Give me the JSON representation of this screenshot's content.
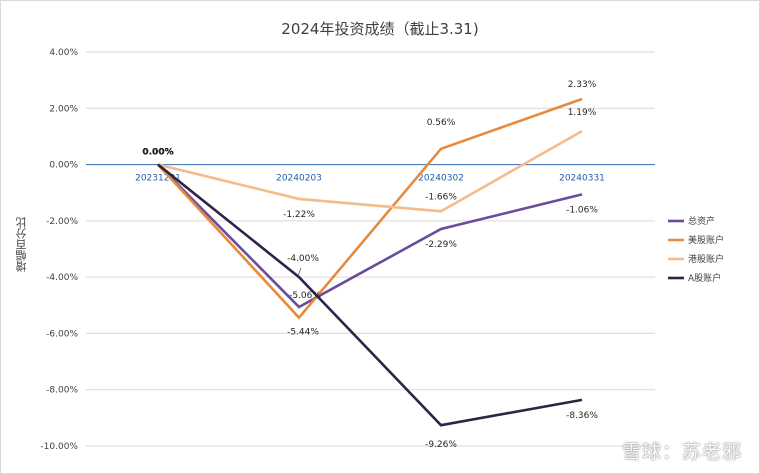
{
  "chart_data": {
    "type": "line",
    "title": "2024年投资成绩（截止3.31)",
    "ylabel": "增幅百分比",
    "xlabel": "",
    "categories": [
      "20231231",
      "20240203",
      "20240302",
      "20240331"
    ],
    "ylim": [
      -10,
      4
    ],
    "yticks": [
      "4.00%",
      "2.00%",
      "0.00%",
      "-2.00%",
      "-4.00%",
      "-6.00%",
      "-8.00%",
      "-10.00%"
    ],
    "ytick_values": [
      4,
      2,
      0,
      -2,
      -4,
      -6,
      -8,
      -10
    ],
    "grid": true,
    "legend_position": "right",
    "series": [
      {
        "name": "总资产",
        "color": "#6a4c9c",
        "values": [
          0,
          -5.06,
          -2.29,
          -1.06
        ],
        "labels": [
          "0.00%",
          "-5.06%",
          "-2.29%",
          "-1.06%"
        ]
      },
      {
        "name": "美股账户",
        "color": "#e88a3c",
        "values": [
          0,
          -5.44,
          0.56,
          2.33
        ],
        "labels": [
          "0.00%",
          "-5.44%",
          "0.56%",
          "2.33%"
        ]
      },
      {
        "name": "港股账户",
        "color": "#f4bc8a",
        "values": [
          0,
          -1.22,
          -1.66,
          1.19
        ],
        "labels": [
          "0.00%",
          "-1.22%",
          "-1.66%",
          "1.19%"
        ]
      },
      {
        "name": "A股账户",
        "color": "#2d2447",
        "values": [
          0,
          -4.0,
          -9.26,
          -8.36
        ],
        "labels": [
          "0.00%",
          "-4.00%",
          "-9.26%",
          "-8.36%"
        ]
      }
    ]
  },
  "watermark": "雪球：苏老邪"
}
